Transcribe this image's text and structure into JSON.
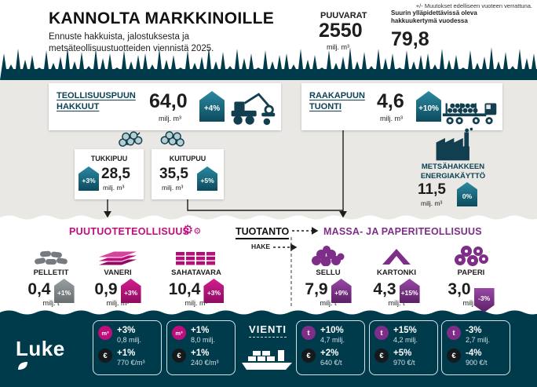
{
  "note": "+/- Muutokset edelliseen vuoteen verrattuna.",
  "header": {
    "title": "KANNOLTA MARKKINOILLE",
    "subtitle": "Ennuste hakkuista, jalostuksesta ja metsäteollisuustuotteiden viennistä 2025.",
    "puuvarat": {
      "label": "PUUVARAT",
      "value": "2550",
      "unit": "milj. m³"
    },
    "kertyma": {
      "label": "Suurin ylläpidettävissä oleva hakkuukertymä vuodessa",
      "value": "79,8"
    }
  },
  "flows": {
    "hakkuut": {
      "label": "TEOLLISUUSPUUN HAKKUUT",
      "value": "64,0",
      "unit": "milj. m³",
      "change": "+4%"
    },
    "tuonti": {
      "label": "RAAKAPUUN TUONTI",
      "value": "4,6",
      "unit": "milj. m³",
      "change": "+10%"
    },
    "tukkipuu": {
      "label": "TUKKIPUU",
      "value": "28,5",
      "unit": "milj. m³",
      "change": "+3%"
    },
    "kuitupuu": {
      "label": "KUITUPUU",
      "value": "35,5",
      "unit": "milj. m³",
      "change": "+5%"
    },
    "energia": {
      "label": "METSÄHAKKEEN ENERGIAKÄYTTÖ",
      "value": "11,5",
      "unit": "milj. m³",
      "change": "0%"
    }
  },
  "sections": {
    "puutuote": "PUUTUOTETEOLLISUUS",
    "tuotanto": "TUOTANTO",
    "massa": "MASSA- JA PAPERITEOLLISUUS",
    "hake": "HAKE"
  },
  "products": [
    {
      "name": "PELLETIT",
      "value": "0,4",
      "change": "+1%",
      "unit": "milj. t"
    },
    {
      "name": "VANERI",
      "value": "0,9",
      "change": "+3%",
      "unit": "milj. m³"
    },
    {
      "name": "SAHATAVARA",
      "value": "10,4",
      "change": "+3%",
      "unit": "milj. m³"
    },
    {
      "name": "SELLU",
      "value": "7,9",
      "change": "+9%",
      "unit": "milj. t"
    },
    {
      "name": "KARTONKI",
      "value": "4,3",
      "change": "+15%",
      "unit": "milj. t"
    },
    {
      "name": "PAPERI",
      "value": "3,0",
      "change": "-3%",
      "unit": "milj. t"
    }
  ],
  "footer": {
    "logo": "Luke",
    "vienti": "VIENTI",
    "boxes": [
      {
        "rows": [
          {
            "icon": "m³",
            "change": "+3%",
            "value": "0,8 milj."
          },
          {
            "icon": "€",
            "change": "+1%",
            "value": "770 €/m³"
          }
        ]
      },
      {
        "rows": [
          {
            "icon": "m³",
            "change": "+1%",
            "value": "8,0 milj."
          },
          {
            "icon": "€",
            "change": "+1%",
            "value": "240 €/m³"
          }
        ]
      },
      {
        "rows": [
          {
            "icon": "t",
            "change": "+10%",
            "value": "4,7 milj."
          },
          {
            "icon": "€",
            "change": "+2%",
            "value": "640 €/t"
          }
        ]
      },
      {
        "rows": [
          {
            "icon": "t",
            "change": "+15%",
            "value": "4,2 milj."
          },
          {
            "icon": "€",
            "change": "+5%",
            "value": "970 €/t"
          }
        ]
      },
      {
        "rows": [
          {
            "icon": "t",
            "change": "-3%",
            "value": "2,7 milj."
          },
          {
            "icon": "€",
            "change": "-4%",
            "value": "900 €/t"
          }
        ]
      }
    ]
  },
  "icons": {
    "gear": "⚙",
    "euro": "€",
    "tonne": "t",
    "cubic_meter": "m³"
  },
  "colors": {
    "dark_teal": "#003b4b",
    "badge_teal": "#1d7a91",
    "magenta": "#c00d7e",
    "purple": "#7e2d88",
    "background_gray": "#e9e8e4",
    "white": "#ffffff"
  }
}
